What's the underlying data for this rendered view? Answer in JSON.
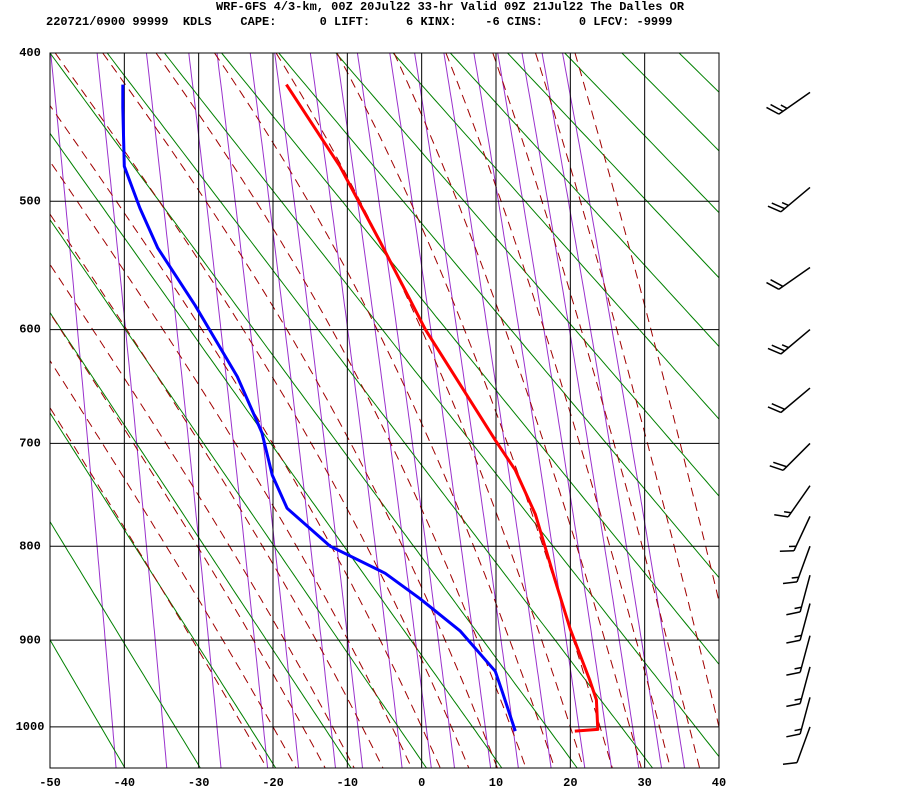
{
  "chart_data": {
    "type": "sounding",
    "title": "WRF-GFS 4/3-km, 00Z 20Jul22 33-hr Valid 09Z 21Jul22 The Dalles OR",
    "subtitle": "220721/0900 99999  KDLS    CAPE:      0 LIFT:     6 KINX:    -6 CINS:     0 LFCV: -9999",
    "xlim": [
      -50,
      40
    ],
    "xticks": [
      -50,
      -40,
      -30,
      -20,
      -10,
      0,
      10,
      20,
      30,
      40
    ],
    "ylim": [
      400,
      1050
    ],
    "yticks": [
      400,
      500,
      600,
      700,
      800,
      900,
      1000
    ],
    "y_exponent": 0.286,
    "y_reversed": true,
    "grid": true,
    "series": [
      {
        "color": "#ff0000",
        "x": [
          -18.2,
          -11.0,
          -5.6,
          0.5,
          4.5,
          9.9,
          12.6,
          15.3,
          17.9,
          20.0,
          22.6,
          23.5,
          23.7,
          20.6
        ],
        "y": [
          420,
          475,
          530,
          600,
          640,
          697,
          725,
          768,
          834,
          888,
          945,
          968,
          1003,
          1005
        ]
      },
      {
        "color": "#0000ff",
        "x": [
          -40.2,
          -40.2,
          -40.0,
          -37.9,
          -35.5,
          -30.5,
          -24.8,
          -21.5,
          -20.1,
          -18.1,
          -12.3,
          -4.9,
          -0.2,
          5.2,
          9.9,
          10.9,
          12.6
        ],
        "y": [
          420,
          435,
          475,
          505,
          535,
          580,
          640,
          690,
          730,
          762,
          800,
          828,
          855,
          890,
          935,
          960,
          1005
        ]
      }
    ],
    "winds": {
      "pressure": [
        425,
        490,
        550,
        600,
        650,
        700,
        740,
        770,
        800,
        830,
        860,
        895,
        930,
        965,
        1000
      ],
      "direction": [
        235,
        230,
        235,
        230,
        230,
        225,
        215,
        205,
        200,
        195,
        195,
        195,
        195,
        195,
        200
      ],
      "speed": [
        25,
        25,
        20,
        25,
        20,
        20,
        15,
        15,
        15,
        15,
        15,
        15,
        15,
        15,
        10
      ]
    }
  }
}
